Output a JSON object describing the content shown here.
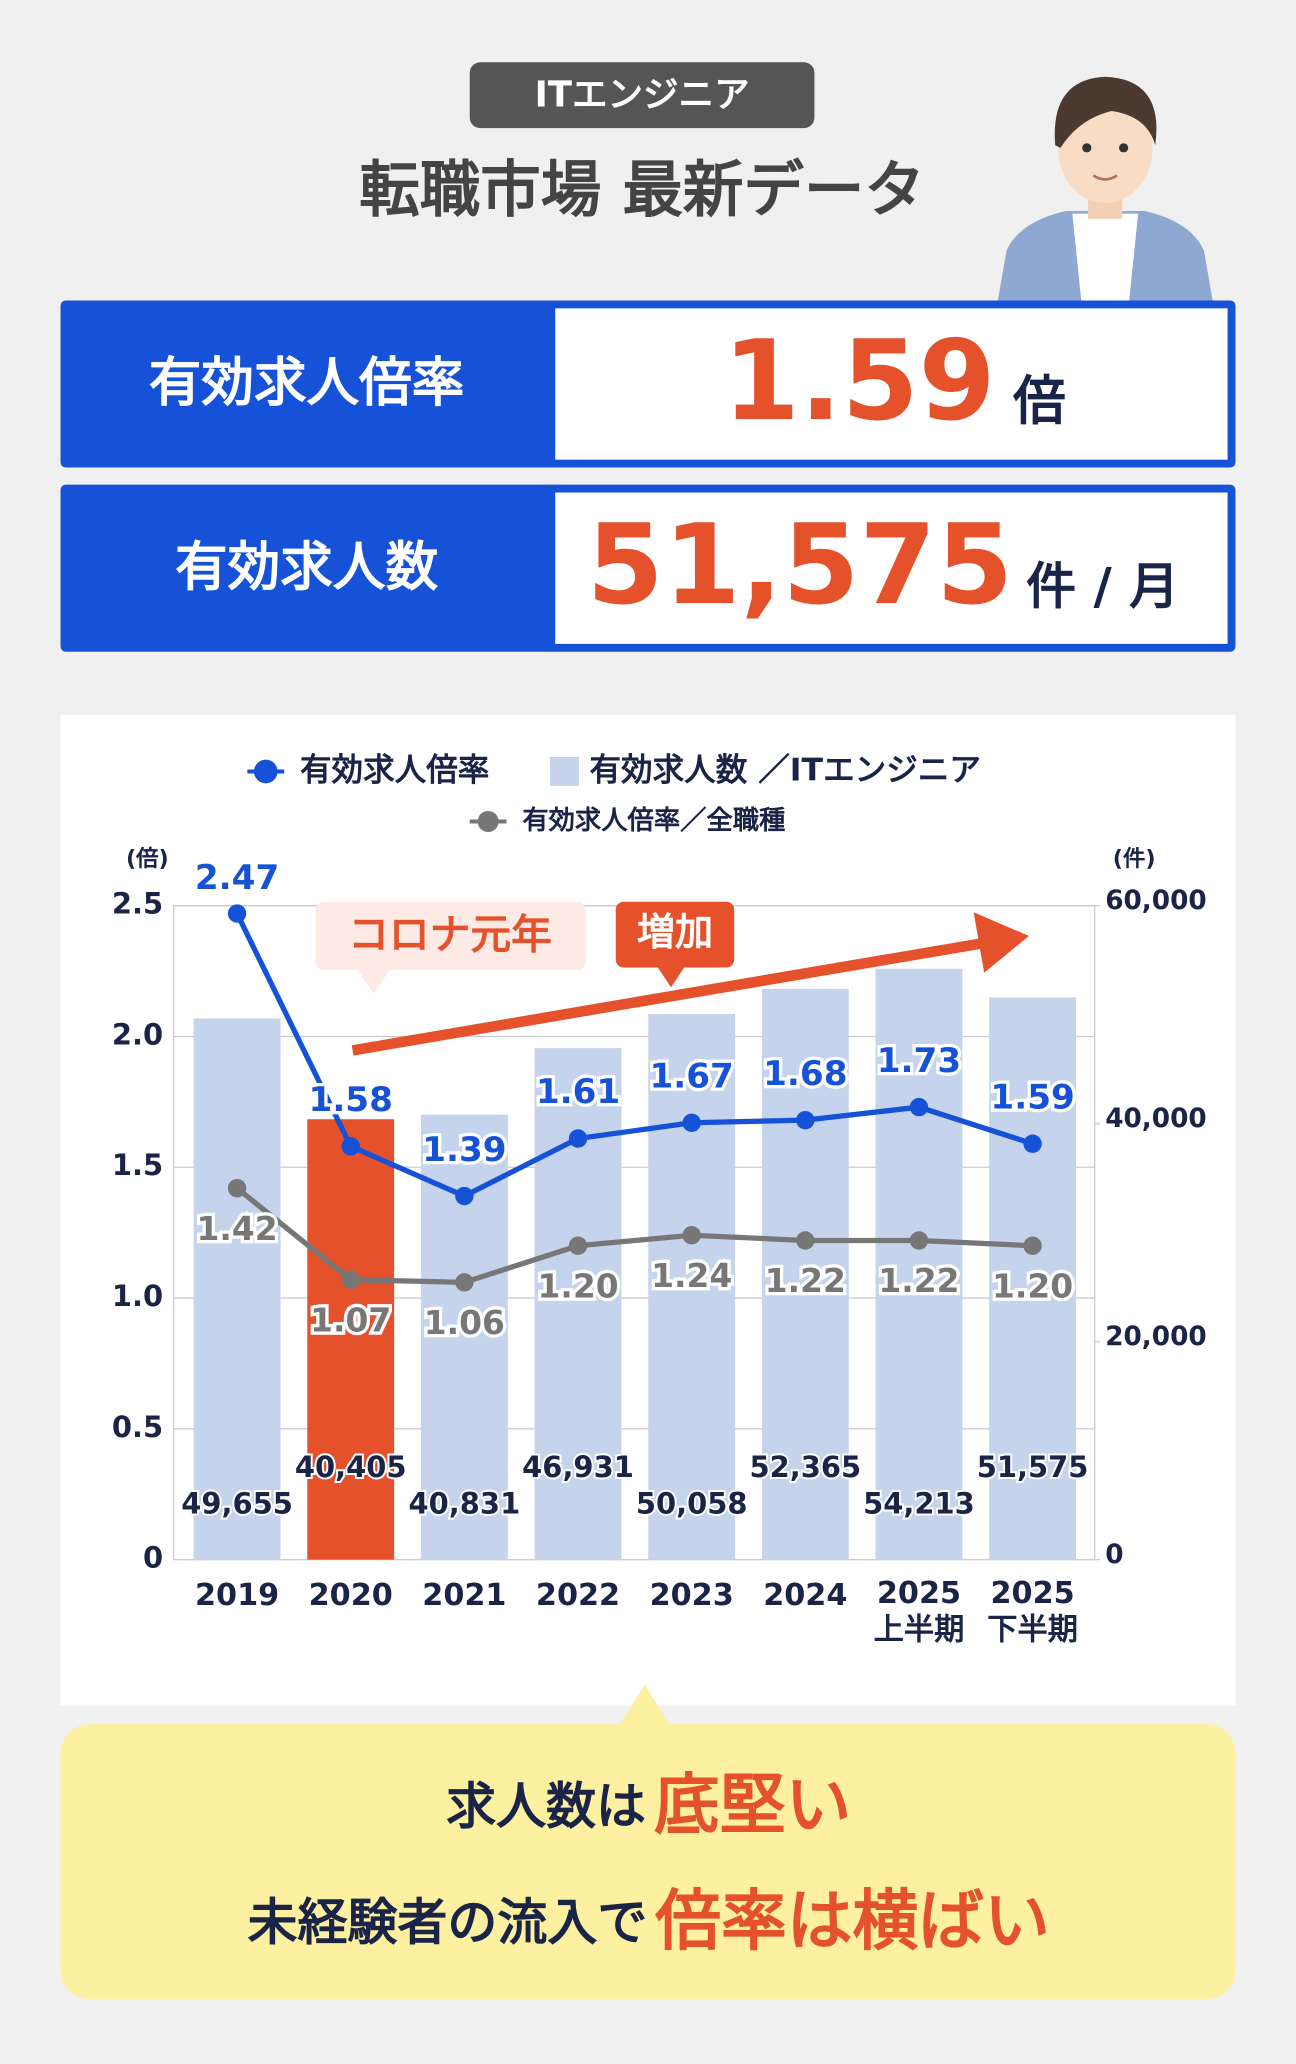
{
  "header": {
    "badge": "ITエンジニア",
    "title": "転職市場 最新データ"
  },
  "stats": [
    {
      "label": "有効求人倍率",
      "value": "1.59",
      "unit": "倍"
    },
    {
      "label": "有効求人数",
      "value": "51,575",
      "unit": "件 / 月"
    }
  ],
  "chart_data": {
    "type": "combo",
    "y_label": "(倍)",
    "y2_label": "(件)",
    "categories": [
      "2019",
      "2020",
      "2021",
      "2022",
      "2023",
      "2024",
      "2025\n上半期",
      "2025\n下半期"
    ],
    "series": [
      {
        "name": "有効求人数 ／ITエンジニア",
        "type": "bar",
        "axis": "y2",
        "color": "#c5d3ec",
        "colors": [
          "#c5d3ec",
          "#e4512a",
          "#c5d3ec",
          "#c5d3ec",
          "#c5d3ec",
          "#c5d3ec",
          "#c5d3ec",
          "#c5d3ec"
        ],
        "values": [
          49655,
          40405,
          40831,
          46931,
          50058,
          52365,
          54213,
          51575
        ],
        "value_labels": [
          "49,655",
          "40,405",
          "40,831",
          "46,931",
          "50,058",
          "52,365",
          "54,213",
          "51,575"
        ]
      },
      {
        "name": "有効求人倍率",
        "type": "line",
        "color": "#1652d8",
        "values": [
          2.47,
          1.58,
          1.39,
          1.61,
          1.67,
          1.68,
          1.73,
          1.59
        ]
      },
      {
        "name": "有効求人倍率／全職種",
        "type": "line",
        "color": "#777777",
        "values": [
          1.42,
          1.07,
          1.06,
          1.2,
          1.24,
          1.22,
          1.22,
          1.2
        ],
        "value_labels": [
          "1.42",
          "1.07",
          "1.06",
          "1.20",
          "1.24",
          "1.22",
          "1.22",
          "1.20"
        ]
      }
    ],
    "ylim": [
      0,
      2.5
    ],
    "yticks": [
      0,
      0.5,
      {
        "value": 1,
        "label": "1.0"
      },
      1.5,
      {
        "value": 2,
        "label": "2.0"
      },
      2.5
    ],
    "y2lim": [
      0,
      60000
    ],
    "y2ticks": [
      0,
      {
        "value": 20000,
        "label": "20,000"
      },
      {
        "value": 40000,
        "label": "40,000"
      },
      {
        "value": 60000,
        "label": "60,000"
      }
    ],
    "grid": true,
    "annotations": [
      "コロナ元年",
      "増加"
    ]
  },
  "footer": {
    "line1": [
      "求人数は",
      "底堅い"
    ],
    "line2": [
      "未経験者の流入で",
      "倍率は横ばい"
    ]
  }
}
